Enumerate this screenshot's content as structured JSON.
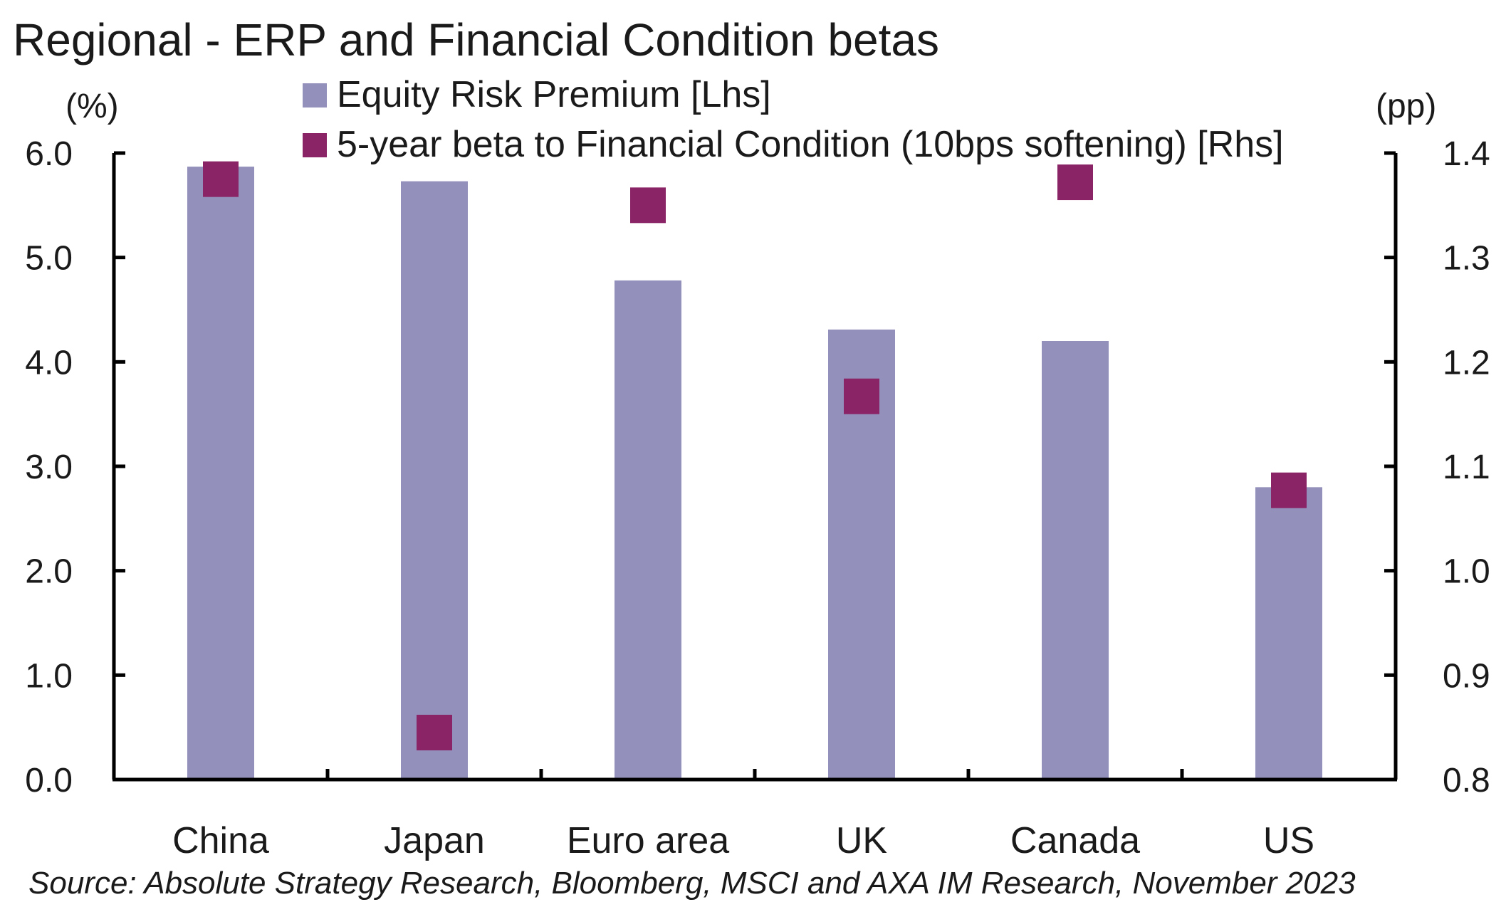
{
  "chart_data": {
    "type": "bar",
    "title": "Regional - ERP and Financial Condition betas",
    "categories": [
      "China",
      "Japan",
      "Euro area",
      "UK",
      "Canada",
      "US"
    ],
    "series": [
      {
        "name": "Equity Risk Premium [Lhs]",
        "type": "bar",
        "axis": "left",
        "color": "#9391bb",
        "values": [
          5.87,
          5.73,
          4.78,
          4.31,
          4.2,
          2.8
        ]
      },
      {
        "name": "5-year beta to Financial Condition (10bps softening) [Rhs]",
        "type": "scatter",
        "marker": "square",
        "axis": "right",
        "color": "#8b2466",
        "values": [
          1.375,
          0.845,
          1.35,
          1.167,
          1.372,
          1.077
        ]
      }
    ],
    "left_axis": {
      "label": "(%)",
      "range": [
        0,
        6
      ],
      "ticks": [
        "0.0",
        "1.0",
        "2.0",
        "3.0",
        "4.0",
        "5.0",
        "6.0"
      ]
    },
    "right_axis": {
      "label": "(pp)",
      "range": [
        0.8,
        1.4
      ],
      "ticks": [
        "0.8",
        "0.9",
        "1.0",
        "1.1",
        "1.2",
        "1.3",
        "1.4"
      ]
    },
    "grid": false,
    "legend_position": "top-center",
    "source": "Source: Absolute Strategy Research, Bloomberg, MSCI and AXA IM Research, November 2023"
  }
}
